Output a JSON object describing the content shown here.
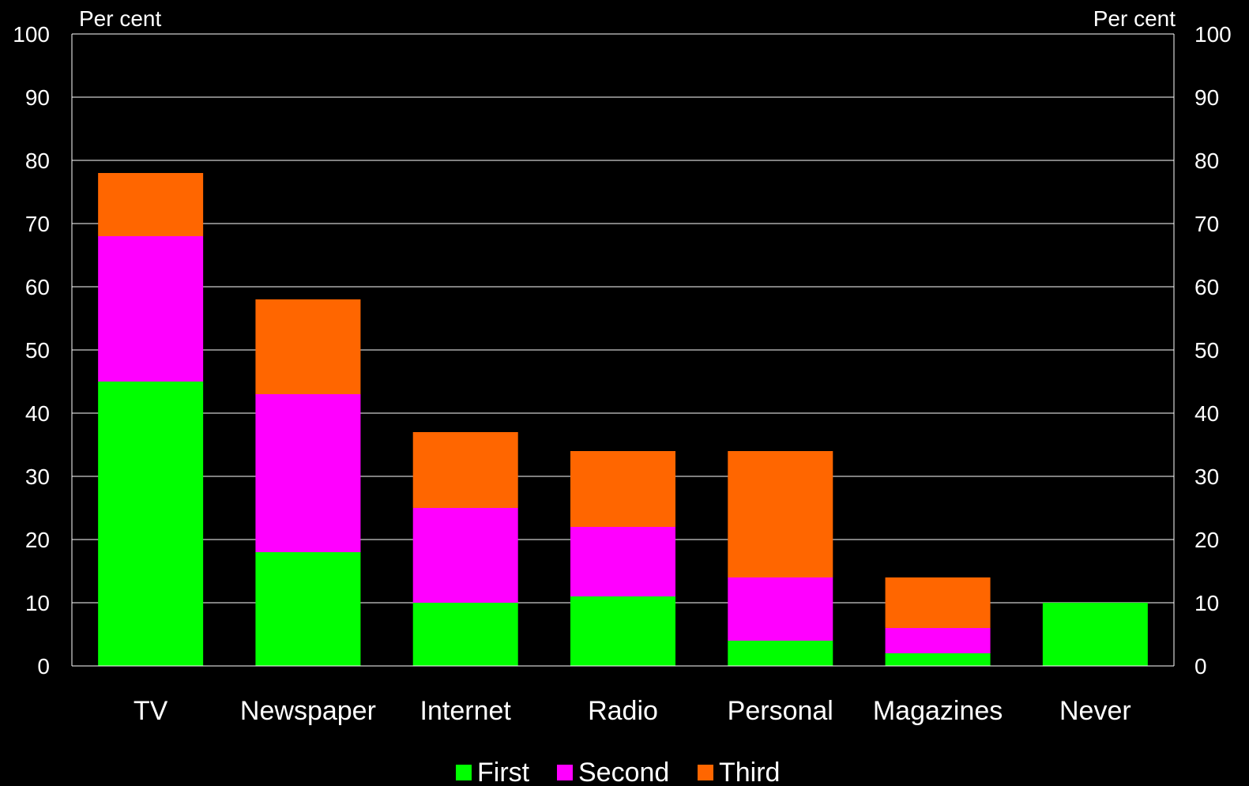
{
  "chart_data": {
    "type": "bar",
    "stacked": true,
    "categories": [
      "TV",
      "Newspaper",
      "Internet",
      "Radio",
      "Personal",
      "Magazines",
      "Never"
    ],
    "series": [
      {
        "name": "First",
        "color": "#00ff00",
        "values": [
          45,
          18,
          10,
          11,
          4,
          2,
          10
        ]
      },
      {
        "name": "Second",
        "color": "#ff00ff",
        "values": [
          23,
          25,
          15,
          11,
          10,
          4,
          0
        ]
      },
      {
        "name": "Third",
        "color": "#ff6600",
        "values": [
          10,
          15,
          12,
          12,
          20,
          8,
          0
        ]
      }
    ],
    "left_axis_label": "Per cent",
    "right_axis_label": "Per cent",
    "ylim": [
      0,
      100
    ],
    "yticks": [
      0,
      10,
      20,
      30,
      40,
      50,
      60,
      70,
      80,
      90,
      100
    ],
    "grid": true,
    "legend_position": "bottom-center",
    "background": "#000000",
    "text_color": "#ffffff"
  }
}
